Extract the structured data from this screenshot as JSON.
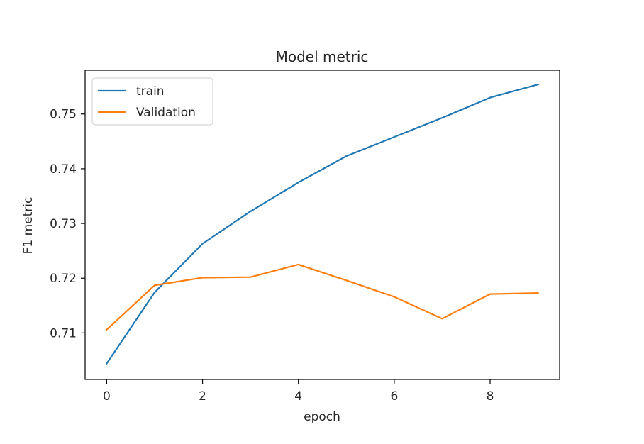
{
  "chart_data": {
    "type": "line",
    "title": "Model metric",
    "xlabel": "epoch",
    "ylabel": "F1 metric",
    "x": [
      0,
      1,
      2,
      3,
      4,
      5,
      6,
      7,
      8,
      9
    ],
    "xlim": [
      -0.45,
      9.45
    ],
    "ylim": [
      0.7015,
      0.758
    ],
    "xticks": [
      0,
      2,
      4,
      6,
      8
    ],
    "xtick_labels": [
      "0",
      "2",
      "4",
      "6",
      "8"
    ],
    "yticks": [
      0.71,
      0.72,
      0.73,
      0.74,
      0.75
    ],
    "ytick_labels": [
      "0.71",
      "0.72",
      "0.73",
      "0.74",
      "0.75"
    ],
    "grid": false,
    "legend_position": "upper-left",
    "series": [
      {
        "name": "train",
        "color": "#1f77b4",
        "values": [
          0.7044,
          0.7174,
          0.7263,
          0.7322,
          0.7375,
          0.7423,
          0.7458,
          0.7493,
          0.753,
          0.7554
        ]
      },
      {
        "name": "Validation",
        "color": "#ff7f0e",
        "values": [
          0.7106,
          0.7187,
          0.7201,
          0.7202,
          0.7225,
          0.7196,
          0.7166,
          0.7126,
          0.7171,
          0.7173
        ]
      }
    ]
  }
}
